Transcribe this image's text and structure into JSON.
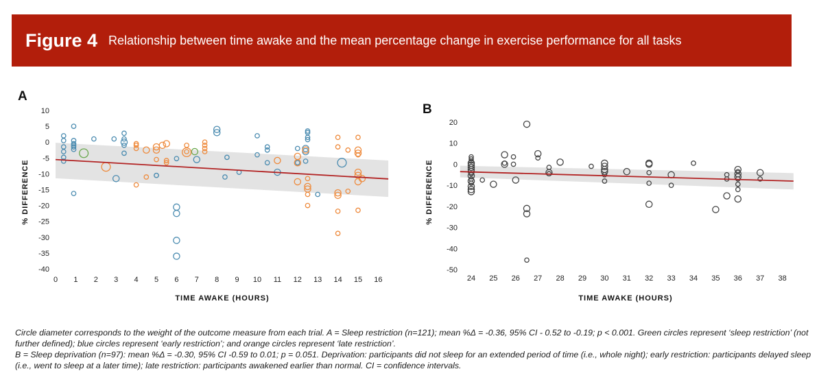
{
  "figure": {
    "number": "Figure 4",
    "title": "Relationship between time awake and the mean percentage change in exercise performance for all tasks",
    "banner_color": "#b21e0b"
  },
  "caption": {
    "line_a": "Circle diameter corresponds to the weight of the outcome measure from each trial. A = Sleep restriction (n=121); mean %Δ = -0.36, 95% CI - 0.52 to -0.19; p < 0.001. Green circles represent ‘sleep restriction’ (not further defined); blue circles represent ‘early restriction’; and orange circles represent ‘late restriction’.",
    "line_b": "B = Sleep deprivation (n=97): mean %Δ = -0.30, 95% CI -0.59 to 0.01; p = 0.051. Deprivation: participants did not sleep for an extended period of time (i.e., whole night); early restriction: participants delayed sleep (i.e., went to sleep at a later time); late restriction: participants awakened earlier than normal. CI = confidence intervals."
  },
  "colors": {
    "sleep_restriction": "#6aa84f",
    "early_restriction": "#4a8bb0",
    "late_restriction": "#ee8a3c",
    "deprivation": "#444444",
    "regression_line": "#b22222",
    "ci_band": "#e3e3e3"
  },
  "chart_data": [
    {
      "panel": "A",
      "type": "scatter",
      "title": "",
      "xlabel": "TIME AWAKE (HOURS)",
      "ylabel": "% DIFFERENCE",
      "xlim": [
        0,
        16.5
      ],
      "ylim": [
        -40,
        10
      ],
      "xticks": [
        0,
        1,
        2,
        3,
        4,
        5,
        6,
        7,
        8,
        9,
        10,
        11,
        12,
        13,
        14,
        15,
        16
      ],
      "yticks": [
        10,
        5,
        0,
        -5,
        -10,
        -15,
        -20,
        -25,
        -30,
        -35,
        -40
      ],
      "grid": false,
      "legend": "none (described in caption)",
      "regression": {
        "x": [
          0,
          16.5
        ],
        "y": [
          -5.5,
          -11.6
        ]
      },
      "ci_band": {
        "x": [
          0,
          16.5
        ],
        "upper": [
          -0.2,
          -5.8
        ],
        "lower": [
          -11.4,
          -17.3
        ]
      },
      "series": [
        {
          "name": "sleep restriction",
          "color_key": "sleep_restriction",
          "points": [
            [
              1.4,
              -3.5,
              "l"
            ],
            [
              6.9,
              -3.0,
              "m"
            ]
          ]
        },
        {
          "name": "early restriction",
          "color_key": "early_restriction",
          "points": [
            [
              0.4,
              2.0,
              "s"
            ],
            [
              0.4,
              0.5,
              "s"
            ],
            [
              0.4,
              -1.5,
              "s"
            ],
            [
              0.4,
              -3.0,
              "s"
            ],
            [
              0.4,
              -4.8,
              "s"
            ],
            [
              0.4,
              -6.0,
              "s"
            ],
            [
              0.9,
              5.0,
              "s"
            ],
            [
              0.9,
              0.5,
              "s"
            ],
            [
              0.9,
              -0.5,
              "s"
            ],
            [
              0.9,
              -1.0,
              "s"
            ],
            [
              0.9,
              -1.5,
              "s"
            ],
            [
              0.9,
              -2.3,
              "s"
            ],
            [
              0.9,
              -16.2,
              "s"
            ],
            [
              1.9,
              1.0,
              "s"
            ],
            [
              2.9,
              1.0,
              "s"
            ],
            [
              3.4,
              2.8,
              "s"
            ],
            [
              3.4,
              1.0,
              "s"
            ],
            [
              3.4,
              0.0,
              "m"
            ],
            [
              3.4,
              -1.0,
              "s"
            ],
            [
              3.4,
              -3.5,
              "s"
            ],
            [
              3.0,
              -11.5,
              "m"
            ],
            [
              5.0,
              -10.5,
              "s"
            ],
            [
              6.0,
              -5.2,
              "s"
            ],
            [
              5.0,
              -10.5,
              "s"
            ],
            [
              6.0,
              -20.5,
              "m"
            ],
            [
              6.0,
              -22.5,
              "m"
            ],
            [
              6.0,
              -31.0,
              "m"
            ],
            [
              6.0,
              -36.0,
              "m"
            ],
            [
              7.0,
              -5.5,
              "m"
            ],
            [
              8.0,
              4.0,
              "m"
            ],
            [
              8.0,
              3.0,
              "m"
            ],
            [
              8.5,
              -4.8,
              "s"
            ],
            [
              8.4,
              -11.0,
              "s"
            ],
            [
              9.1,
              -9.5,
              "s"
            ],
            [
              10.0,
              2.0,
              "s"
            ],
            [
              10.0,
              -4.0,
              "s"
            ],
            [
              10.5,
              -1.5,
              "s"
            ],
            [
              10.5,
              -2.5,
              "s"
            ],
            [
              10.5,
              -6.5,
              "s"
            ],
            [
              11.0,
              -9.5,
              "m"
            ],
            [
              12.0,
              -2.0,
              "s"
            ],
            [
              12.0,
              -6.5,
              "s"
            ],
            [
              12.4,
              -2.0,
              "m"
            ],
            [
              12.4,
              -3.0,
              "m"
            ],
            [
              12.4,
              -6.0,
              "s"
            ],
            [
              12.5,
              3.5,
              "s"
            ],
            [
              12.5,
              3.0,
              "s"
            ],
            [
              12.5,
              1.5,
              "s"
            ],
            [
              12.5,
              0.8,
              "s"
            ],
            [
              13.0,
              -16.5,
              "s"
            ],
            [
              14.2,
              -6.5,
              "l"
            ]
          ]
        },
        {
          "name": "late restriction",
          "color_key": "late_restriction",
          "points": [
            [
              2.5,
              -7.8,
              "l"
            ],
            [
              4.0,
              -0.5,
              "s"
            ],
            [
              4.0,
              -1.0,
              "s"
            ],
            [
              4.0,
              -2.0,
              "s"
            ],
            [
              4.0,
              -13.5,
              "s"
            ],
            [
              4.5,
              -2.5,
              "m"
            ],
            [
              4.5,
              -11.0,
              "s"
            ],
            [
              5.0,
              -1.5,
              "m"
            ],
            [
              5.0,
              -2.5,
              "m"
            ],
            [
              5.0,
              -5.5,
              "s"
            ],
            [
              5.3,
              -1.0,
              "m"
            ],
            [
              5.5,
              -0.5,
              "m"
            ],
            [
              5.5,
              -5.8,
              "s"
            ],
            [
              5.5,
              -6.5,
              "s"
            ],
            [
              6.5,
              -1.0,
              "s"
            ],
            [
              6.5,
              -3.2,
              "l"
            ],
            [
              6.5,
              -3.0,
              "s"
            ],
            [
              7.4,
              0.0,
              "s"
            ],
            [
              7.4,
              -1.0,
              "s"
            ],
            [
              7.4,
              -2.0,
              "s"
            ],
            [
              7.4,
              -3.0,
              "s"
            ],
            [
              11.0,
              -5.8,
              "m"
            ],
            [
              12.0,
              -4.5,
              "m"
            ],
            [
              12.0,
              -6.5,
              "m"
            ],
            [
              12.0,
              -12.5,
              "m"
            ],
            [
              12.4,
              -2.5,
              "m"
            ],
            [
              12.5,
              -11.5,
              "s"
            ],
            [
              12.5,
              -14.0,
              "m"
            ],
            [
              12.5,
              -14.8,
              "m"
            ],
            [
              12.5,
              -16.5,
              "s"
            ],
            [
              12.5,
              -20.0,
              "s"
            ],
            [
              14.0,
              1.5,
              "s"
            ],
            [
              14.0,
              -1.5,
              "s"
            ],
            [
              14.0,
              -16.0,
              "m"
            ],
            [
              14.0,
              -16.8,
              "m"
            ],
            [
              14.0,
              -21.8,
              "s"
            ],
            [
              14.0,
              -28.8,
              "s"
            ],
            [
              14.5,
              -2.5,
              "s"
            ],
            [
              14.5,
              -15.5,
              "s"
            ],
            [
              15.0,
              -2.5,
              "m"
            ],
            [
              15.0,
              -3.5,
              "m"
            ],
            [
              15.0,
              -4.0,
              "s"
            ],
            [
              15.0,
              -9.5,
              "m"
            ],
            [
              15.0,
              -10.5,
              "m"
            ],
            [
              15.0,
              -12.5,
              "m"
            ],
            [
              15.2,
              -11.5,
              "m"
            ],
            [
              15.0,
              -21.5,
              "s"
            ],
            [
              15.0,
              1.5,
              "s"
            ]
          ]
        }
      ]
    },
    {
      "panel": "B",
      "type": "scatter",
      "title": "",
      "xlabel": "TIME AWAKE (HOURS)",
      "ylabel": "% DIFFERENCE",
      "xlim": [
        23.5,
        38.5
      ],
      "ylim": [
        -50,
        20
      ],
      "xticks": [
        24,
        25,
        26,
        27,
        28,
        29,
        30,
        31,
        32,
        33,
        34,
        35,
        36,
        37,
        38
      ],
      "yticks": [
        20,
        10,
        0,
        -10,
        -20,
        -30,
        -40,
        -50
      ],
      "grid": false,
      "legend": "none",
      "regression": {
        "x": [
          23.5,
          38.5
        ],
        "y": [
          -3.5,
          -8.0
        ]
      },
      "ci_band": {
        "x": [
          23.5,
          38.5
        ],
        "upper": [
          -0.7,
          -4.2
        ],
        "lower": [
          -6.2,
          -12.0
        ]
      },
      "series": [
        {
          "name": "sleep deprivation",
          "color_key": "deprivation",
          "points": [
            [
              24.0,
              3.5,
              "s"
            ],
            [
              24.0,
              2.5,
              "s"
            ],
            [
              24.0,
              1.5,
              "s"
            ],
            [
              24.0,
              0.5,
              "m"
            ],
            [
              24.0,
              -0.5,
              "m"
            ],
            [
              24.0,
              -1.5,
              "m"
            ],
            [
              24.0,
              -2.5,
              "m"
            ],
            [
              24.0,
              -3.5,
              "m"
            ],
            [
              24.0,
              -4.5,
              "s"
            ],
            [
              24.0,
              -5.5,
              "m"
            ],
            [
              24.0,
              -7.0,
              "s"
            ],
            [
              24.0,
              -8.0,
              "m"
            ],
            [
              24.0,
              -9.0,
              "s"
            ],
            [
              24.0,
              -10.5,
              "m"
            ],
            [
              24.0,
              -12.0,
              "m"
            ],
            [
              24.0,
              -13.0,
              "m"
            ],
            [
              24.5,
              -7.5,
              "s"
            ],
            [
              25.0,
              -9.5,
              "m"
            ],
            [
              25.5,
              4.5,
              "m"
            ],
            [
              25.5,
              0.0,
              "m"
            ],
            [
              25.5,
              0.5,
              "s"
            ],
            [
              25.9,
              3.5,
              "s"
            ],
            [
              25.9,
              0.0,
              "s"
            ],
            [
              26.0,
              -7.5,
              "m"
            ],
            [
              26.5,
              19.0,
              "m"
            ],
            [
              26.5,
              -21.0,
              "m"
            ],
            [
              26.5,
              -23.5,
              "m"
            ],
            [
              26.5,
              -45.5,
              "s"
            ],
            [
              27.0,
              5.0,
              "m"
            ],
            [
              27.0,
              3.0,
              "s"
            ],
            [
              27.5,
              -1.5,
              "s"
            ],
            [
              27.5,
              -4.0,
              "m"
            ],
            [
              27.5,
              -4.5,
              "s"
            ],
            [
              28.0,
              1.0,
              "m"
            ],
            [
              29.4,
              -1.0,
              "s"
            ],
            [
              30.0,
              0.5,
              "m"
            ],
            [
              30.0,
              -1.0,
              "m"
            ],
            [
              30.0,
              -2.5,
              "m"
            ],
            [
              30.0,
              -3.5,
              "m"
            ],
            [
              30.0,
              -5.0,
              "s"
            ],
            [
              30.0,
              -8.0,
              "s"
            ],
            [
              31.0,
              -3.5,
              "m"
            ],
            [
              32.0,
              0.5,
              "m"
            ],
            [
              32.0,
              0.0,
              "m"
            ],
            [
              32.0,
              -4.0,
              "s"
            ],
            [
              32.0,
              -9.0,
              "s"
            ],
            [
              32.0,
              -19.0,
              "m"
            ],
            [
              33.0,
              -5.0,
              "m"
            ],
            [
              33.0,
              -10.0,
              "s"
            ],
            [
              34.0,
              0.5,
              "s"
            ],
            [
              35.0,
              -21.5,
              "m"
            ],
            [
              35.5,
              -5.0,
              "s"
            ],
            [
              35.5,
              -7.0,
              "s"
            ],
            [
              35.5,
              -15.0,
              "m"
            ],
            [
              36.0,
              -2.5,
              "m"
            ],
            [
              36.0,
              -3.5,
              "s"
            ],
            [
              36.0,
              -4.5,
              "m"
            ],
            [
              36.0,
              -6.0,
              "m"
            ],
            [
              36.0,
              -7.0,
              "s"
            ],
            [
              36.0,
              -9.5,
              "s"
            ],
            [
              36.0,
              -12.0,
              "s"
            ],
            [
              36.0,
              -16.5,
              "m"
            ],
            [
              37.0,
              -4.0,
              "m"
            ],
            [
              37.0,
              -7.0,
              "s"
            ]
          ]
        }
      ]
    }
  ]
}
